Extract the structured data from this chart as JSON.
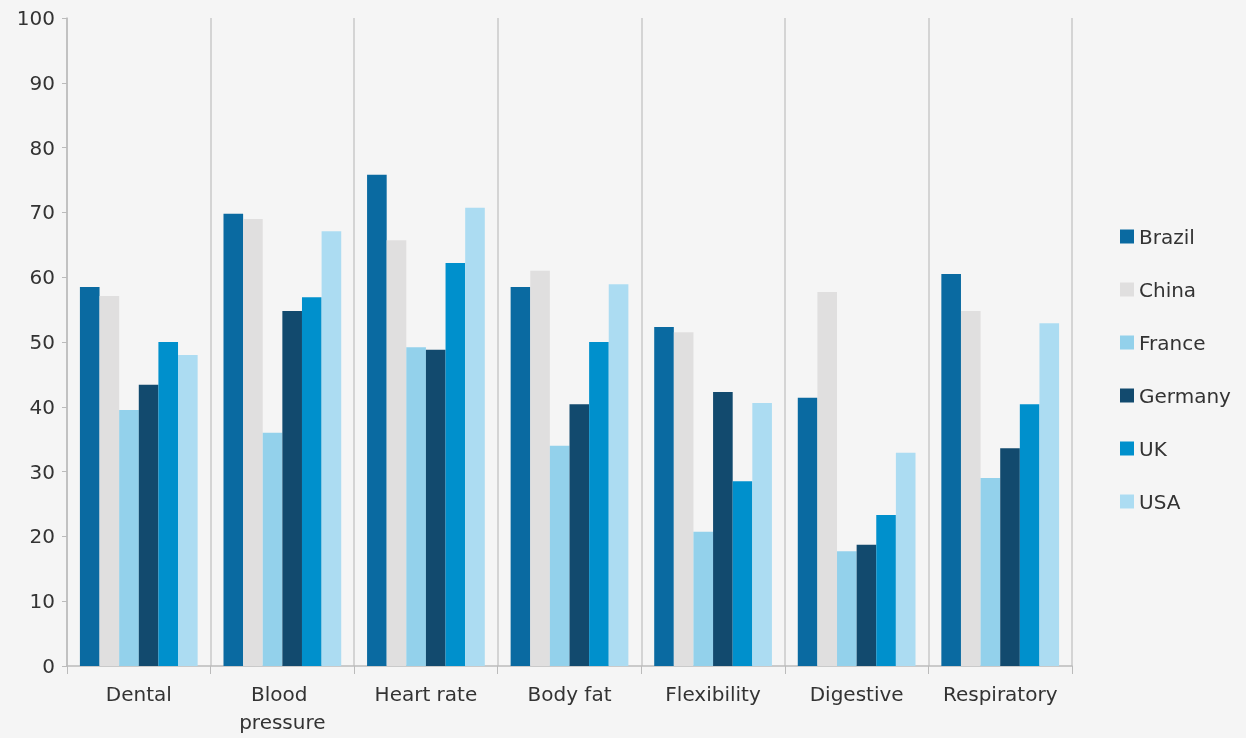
{
  "chart_data": {
    "type": "bar",
    "categories": [
      "Dental",
      "Blood pressure",
      "Heart rate",
      "Body fat",
      "Flexibility",
      "Digestive",
      "Respiratory"
    ],
    "series": [
      {
        "name": "Brazil",
        "color": "#0a6aa1",
        "values": [
          58.5,
          69.8,
          75.8,
          58.5,
          52.3,
          41.4,
          60.5
        ]
      },
      {
        "name": "China",
        "color": "#e0dfdf",
        "values": [
          57.1,
          69.0,
          65.7,
          61.0,
          51.5,
          57.7,
          54.8
        ]
      },
      {
        "name": "France",
        "color": "#93d1eb",
        "values": [
          39.5,
          36.0,
          49.2,
          34.0,
          20.7,
          17.7,
          29.0
        ]
      },
      {
        "name": "Germany",
        "color": "#124a6e",
        "values": [
          43.4,
          54.8,
          48.8,
          40.4,
          42.3,
          18.7,
          33.6
        ]
      },
      {
        "name": "UK",
        "color": "#0090cc",
        "values": [
          50.0,
          56.9,
          62.2,
          50.0,
          28.5,
          23.3,
          40.4
        ]
      },
      {
        "name": "USA",
        "color": "#acdcf2",
        "values": [
          48.0,
          67.1,
          70.7,
          58.9,
          40.6,
          32.9,
          52.9
        ]
      }
    ],
    "ylim": [
      0,
      100
    ],
    "yticks": [
      0,
      10,
      20,
      30,
      40,
      50,
      60,
      70,
      80,
      90,
      100
    ],
    "grid": "x",
    "legend": "right"
  }
}
